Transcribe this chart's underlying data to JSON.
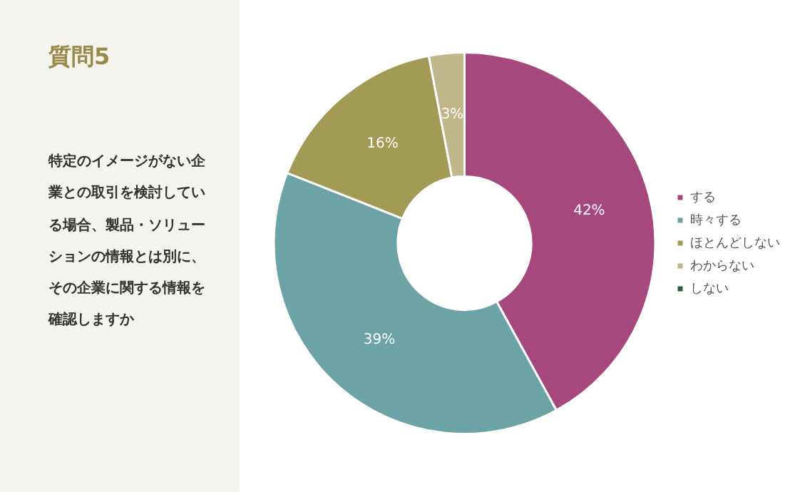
{
  "chart_data": {
    "type": "donut",
    "title": "質問5",
    "subtitle": "特定のイメージがない企業との取引を検討している場合、製品・ソリューションの情報とは別に、その企業に関する情報を確認しますか",
    "categories": [
      "する",
      "時々する",
      "ほとんどしない",
      "わからない",
      "しない"
    ],
    "values": [
      42,
      39,
      16,
      3,
      0
    ],
    "colors": [
      "#a6487e",
      "#6ba3a6",
      "#a39a55",
      "#bfb68a",
      "#2e5e3e"
    ],
    "value_labels": [
      "42%",
      "39%",
      "16%",
      "3%",
      null
    ],
    "legend": "right"
  }
}
